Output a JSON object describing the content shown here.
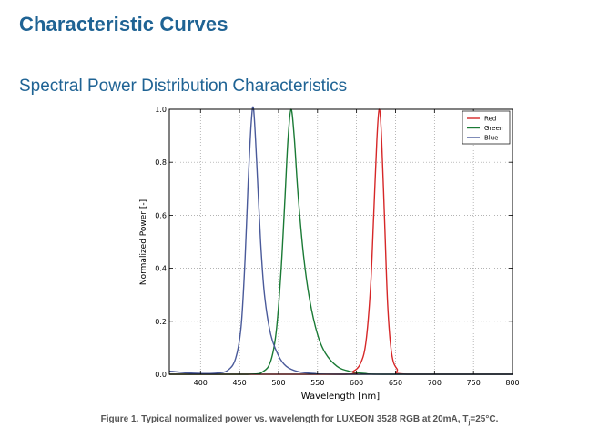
{
  "document": {
    "heading": "Characteristic Curves",
    "subheading": "Spectral Power Distribution Characteristics",
    "caption_pre": "Figure 1. Typical normalized power vs. wavelength for LUXEON 3528 RGB at 20mA, T",
    "caption_sub": "j",
    "caption_post": "=25°C."
  },
  "chart_data": {
    "type": "line",
    "title": "",
    "xlabel": "Wavelength [nm]",
    "ylabel": "Normalized Power [-]",
    "xlim": [
      360,
      800
    ],
    "ylim": [
      0,
      1
    ],
    "x_ticks": [
      400,
      450,
      500,
      550,
      600,
      650,
      700,
      750,
      800
    ],
    "y_ticks": [
      0.0,
      0.2,
      0.4,
      0.6,
      0.8,
      1.0
    ],
    "y_tick_labels": [
      "0.0",
      "0.2",
      "0.4",
      "0.6",
      "0.8",
      "1.0"
    ],
    "grid": true,
    "legend_position": "top-right",
    "series": [
      {
        "name": "Red",
        "color": "#d62728",
        "x": [
          360,
          580,
          595,
          605,
          612,
          618,
          622,
          626,
          629,
          632,
          636,
          640,
          645,
          652,
          665,
          800
        ],
        "y": [
          0,
          0.0,
          0.01,
          0.04,
          0.12,
          0.33,
          0.6,
          0.88,
          1.0,
          0.9,
          0.58,
          0.26,
          0.08,
          0.02,
          0.0,
          0
        ]
      },
      {
        "name": "Green",
        "color": "#1a7a35",
        "x": [
          360,
          460,
          480,
          490,
          497,
          503,
          508,
          512,
          516,
          520,
          525,
          532,
          540,
          550,
          560,
          575,
          590,
          610,
          640,
          800
        ],
        "y": [
          0,
          0.0,
          0.01,
          0.05,
          0.16,
          0.38,
          0.65,
          0.88,
          1.0,
          0.9,
          0.68,
          0.45,
          0.28,
          0.15,
          0.08,
          0.03,
          0.012,
          0.003,
          0.0,
          0
        ]
      },
      {
        "name": "Blue",
        "color": "#4a5a9a",
        "x": [
          360,
          380,
          400,
          420,
          435,
          445,
          452,
          457,
          461,
          465,
          468,
          472,
          477,
          482,
          490,
          500,
          510,
          525,
          545,
          580,
          800
        ],
        "y": [
          0.012,
          0.006,
          0.003,
          0.004,
          0.015,
          0.06,
          0.18,
          0.43,
          0.72,
          0.95,
          1.0,
          0.8,
          0.5,
          0.3,
          0.15,
          0.07,
          0.03,
          0.01,
          0.003,
          0.0,
          0
        ]
      }
    ]
  }
}
